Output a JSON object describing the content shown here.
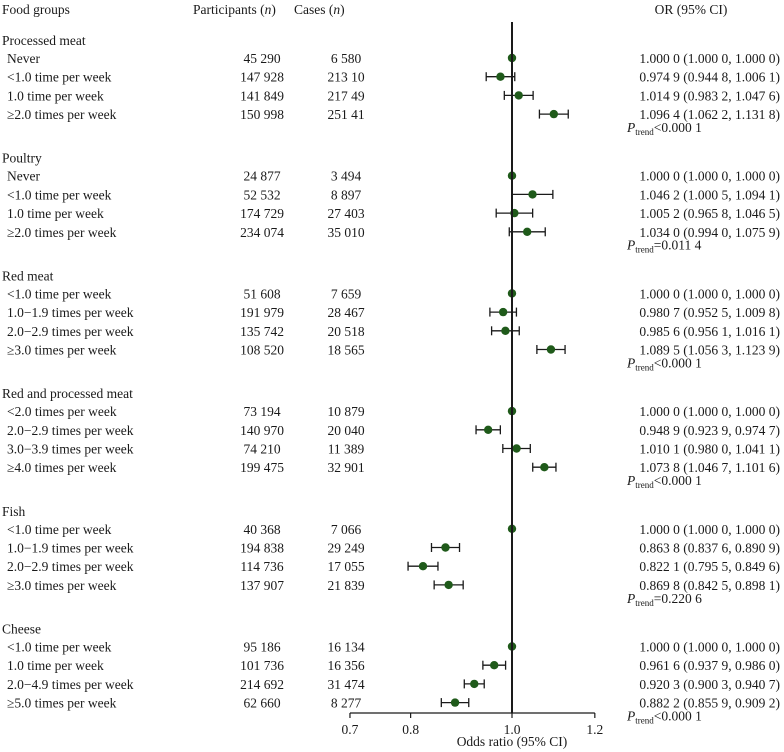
{
  "chart_data": {
    "type": "forest",
    "headers": {
      "group": "Food groups",
      "participants": "Participants",
      "cases": "Cases",
      "n": "n",
      "or": "OR (95% CI)"
    },
    "xlabel": "Odds ratio (95% CI)",
    "x_ticks": [
      "0.7",
      "0.8",
      "1.0",
      "1.2"
    ],
    "xlim": [
      0.7,
      1.2
    ],
    "reference_line": 1.0,
    "marker_color": "#1f5a1a",
    "p_symbol": "P",
    "p_subscript": "trend",
    "groups": [
      {
        "name": "Processed meat",
        "p_trend": "<0.000 1",
        "rows": [
          {
            "label": "Never",
            "participants": "45 290",
            "cases": "6 580",
            "or_text": "1.000 0 (1.000 0, 1.000 0)",
            "or": 1.0,
            "lo": 1.0,
            "hi": 1.0
          },
          {
            "label": "<1.0 time per week",
            "participants": "147 928",
            "cases": "213 10",
            "or_text": "0.974 9 (0.944 8, 1.006 1)",
            "or": 0.9749,
            "lo": 0.9448,
            "hi": 1.0061
          },
          {
            "label": "1.0 time per week",
            "participants": "141 849",
            "cases": "217 49",
            "or_text": "1.014 9 (0.983 2, 1.047 6)",
            "or": 1.0149,
            "lo": 0.9832,
            "hi": 1.0476
          },
          {
            "label": "≥2.0 times per week",
            "participants": "150 998",
            "cases": "251 41",
            "or_text": "1.096 4 (1.062 2, 1.131 8)",
            "or": 1.0964,
            "lo": 1.0622,
            "hi": 1.1318
          }
        ]
      },
      {
        "name": "Poultry",
        "p_trend": "=0.011 4",
        "rows": [
          {
            "label": "Never",
            "participants": "24 877",
            "cases": "3 494",
            "or_text": "1.000 0 (1.000 0, 1.000 0)",
            "or": 1.0,
            "lo": 1.0,
            "hi": 1.0
          },
          {
            "label": "<1.0 time per week",
            "participants": "52 532",
            "cases": "8 897",
            "or_text": "1.046 2 (1.000 5, 1.094 1)",
            "or": 1.0462,
            "lo": 1.0005,
            "hi": 1.0941
          },
          {
            "label": "1.0 time per week",
            "participants": "174 729",
            "cases": "27 403",
            "or_text": "1.005 2 (0.965 8, 1.046 5)",
            "or": 1.0052,
            "lo": 0.9658,
            "hi": 1.0465
          },
          {
            "label": "≥2.0 times per week",
            "participants": "234 074",
            "cases": "35 010",
            "or_text": "1.034 0 (0.994 0, 1.075 9)",
            "or": 1.034,
            "lo": 0.994,
            "hi": 1.0759
          }
        ]
      },
      {
        "name": "Red meat",
        "p_trend": "<0.000 1",
        "rows": [
          {
            "label": "<1.0 time per week",
            "participants": "51 608",
            "cases": "7 659",
            "or_text": "1.000 0 (1.000 0, 1.000 0)",
            "or": 1.0,
            "lo": 1.0,
            "hi": 1.0
          },
          {
            "label": "1.0−1.9 times per week",
            "participants": "191 979",
            "cases": "28 467",
            "or_text": "0.980 7 (0.952 5, 1.009 8)",
            "or": 0.9807,
            "lo": 0.9525,
            "hi": 1.0098
          },
          {
            "label": "2.0−2.9 times per week",
            "participants": "135 742",
            "cases": "20 518",
            "or_text": "0.985 6 (0.956 1, 1.016 1)",
            "or": 0.9856,
            "lo": 0.9561,
            "hi": 1.0161
          },
          {
            "label": "≥3.0 times per week",
            "participants": "108 520",
            "cases": "18 565",
            "or_text": "1.089 5 (1.056 3, 1.123 9)",
            "or": 1.0895,
            "lo": 1.0563,
            "hi": 1.1239
          }
        ]
      },
      {
        "name": "Red and processed meat",
        "p_trend": "<0.000 1",
        "rows": [
          {
            "label": "<2.0 times per week",
            "participants": "73 194",
            "cases": "10 879",
            "or_text": "1.000 0 (1.000 0, 1.000 0)",
            "or": 1.0,
            "lo": 1.0,
            "hi": 1.0
          },
          {
            "label": "2.0−2.9 times per week",
            "participants": "140 970",
            "cases": "20 040",
            "or_text": "0.948 9 (0.923 9, 0.974 7)",
            "or": 0.9489,
            "lo": 0.9239,
            "hi": 0.9747
          },
          {
            "label": "3.0−3.9 times per week",
            "participants": "74 210",
            "cases": "11 389",
            "or_text": "1.010 1 (0.980 0, 1.041 1)",
            "or": 1.0101,
            "lo": 0.98,
            "hi": 1.0411
          },
          {
            "label": "≥4.0 times per week",
            "participants": "199 475",
            "cases": "32 901",
            "or_text": "1.073 8 (1.046 7, 1.101 6)",
            "or": 1.0738,
            "lo": 1.0467,
            "hi": 1.1016
          }
        ]
      },
      {
        "name": "Fish",
        "p_trend": "=0.220 6",
        "rows": [
          {
            "label": "<1.0 time per week",
            "participants": "40 368",
            "cases": "7 066",
            "or_text": "1.000 0 (1.000 0, 1.000 0)",
            "or": 1.0,
            "lo": 1.0,
            "hi": 1.0
          },
          {
            "label": "1.0−1.9 times per week",
            "participants": "194 838",
            "cases": "29 249",
            "or_text": "0.863 8 (0.837 6, 0.890 9)",
            "or": 0.8638,
            "lo": 0.8376,
            "hi": 0.8909
          },
          {
            "label": "2.0−2.9 times per week",
            "participants": "114 736",
            "cases": "17 055",
            "or_text": "0.822 1 (0.795 5, 0.849 6)",
            "or": 0.8221,
            "lo": 0.7955,
            "hi": 0.8496
          },
          {
            "label": "≥3.0 times per week",
            "participants": "137 907",
            "cases": "21 839",
            "or_text": "0.869 8 (0.842 5, 0.898 1)",
            "or": 0.8698,
            "lo": 0.8425,
            "hi": 0.8981
          }
        ]
      },
      {
        "name": "Cheese",
        "p_trend": "<0.000 1",
        "rows": [
          {
            "label": "<1.0 time per week",
            "participants": "95 186",
            "cases": "16 134",
            "or_text": "1.000 0 (1.000 0, 1.000 0)",
            "or": 1.0,
            "lo": 1.0,
            "hi": 1.0
          },
          {
            "label": "1.0 time per week",
            "participants": "101 736",
            "cases": "16 356",
            "or_text": "0.961 6 (0.937 9, 0.986 0)",
            "or": 0.9616,
            "lo": 0.9379,
            "hi": 0.986
          },
          {
            "label": "2.0−4.9 times per week",
            "participants": "214 692",
            "cases": "31 474",
            "or_text": "0.920 3 (0.900 3, 0.940 7)",
            "or": 0.9203,
            "lo": 0.9003,
            "hi": 0.9407
          },
          {
            "label": "≥5.0 times per week",
            "participants": "62 660",
            "cases": "8 277",
            "or_text": "0.882 2 (0.855 9, 0.909 2)",
            "or": 0.8822,
            "lo": 0.8559,
            "hi": 0.9092
          }
        ]
      }
    ]
  }
}
